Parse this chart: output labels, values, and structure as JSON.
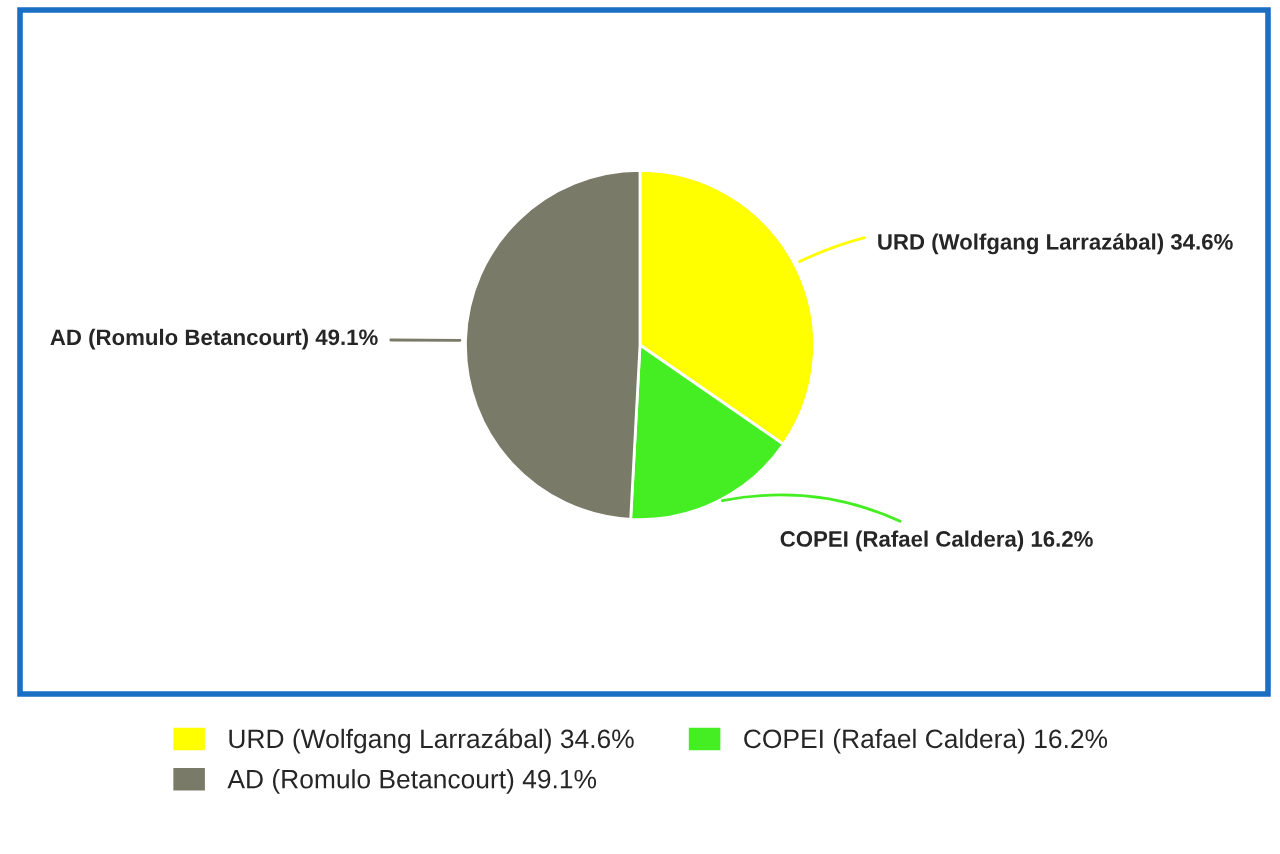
{
  "chart_data": {
    "type": "pie",
    "categories": [
      "URD (Wolfgang Larrazábal)",
      "COPEI (Rafael Caldera)",
      "AD (Romulo Betancourt)"
    ],
    "values": [
      34.6,
      16.2,
      49.1
    ],
    "value_labels": [
      "34.6%",
      "16.2%",
      "49.1%"
    ],
    "colors": [
      "#ffff00",
      "#44ee22",
      "#7a7a68"
    ],
    "legend": "bottom"
  }
}
